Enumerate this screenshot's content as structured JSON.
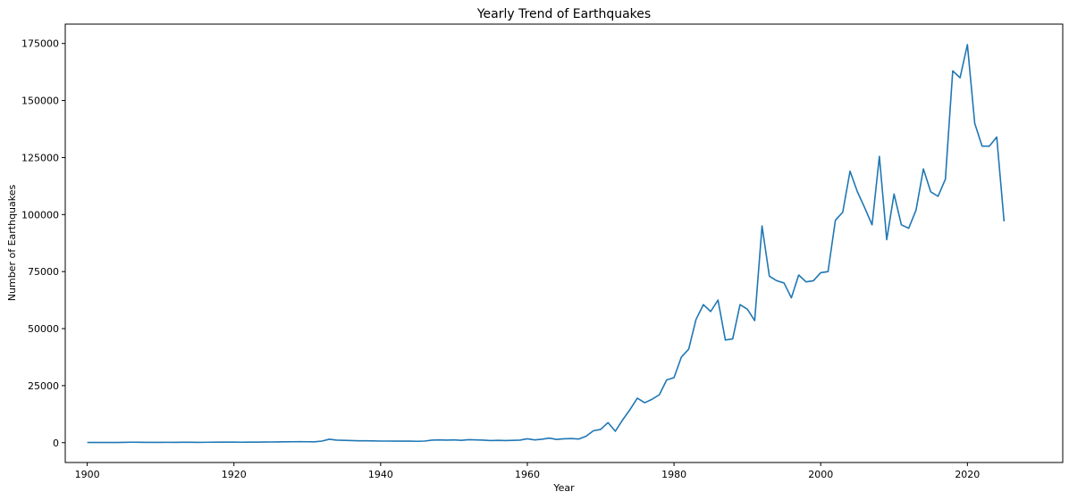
{
  "chart_data": {
    "type": "line",
    "title": "Yearly Trend of Earthquakes",
    "xlabel": "Year",
    "ylabel": "Number of Earthquakes",
    "xlim": [
      1897,
      2033
    ],
    "ylim": [
      -8700,
      183500
    ],
    "x_ticks": [
      1900,
      1920,
      1940,
      1960,
      1980,
      2000,
      2020
    ],
    "y_ticks": [
      0,
      25000,
      50000,
      75000,
      100000,
      125000,
      150000,
      175000
    ],
    "grid": false,
    "line_color": "#1f77b4",
    "series": [
      {
        "x": [
          1900,
          1901,
          1902,
          1903,
          1904,
          1905,
          1906,
          1907,
          1908,
          1909,
          1910,
          1911,
          1912,
          1913,
          1914,
          1915,
          1916,
          1917,
          1918,
          1919,
          1920,
          1921,
          1922,
          1923,
          1924,
          1925,
          1926,
          1927,
          1928,
          1929,
          1930,
          1931,
          1932,
          1933,
          1934,
          1935,
          1936,
          1937,
          1938,
          1939,
          1940,
          1941,
          1942,
          1943,
          1944,
          1945,
          1946,
          1947,
          1948,
          1949,
          1950,
          1951,
          1952,
          1953,
          1954,
          1955,
          1956,
          1957,
          1958,
          1959,
          1960,
          1961,
          1962,
          1963,
          1964,
          1965,
          1966,
          1967,
          1968,
          1969,
          1970,
          1971,
          1972,
          1973,
          1974,
          1975,
          1976,
          1977,
          1978,
          1979,
          1980,
          1981,
          1982,
          1983,
          1984,
          1985,
          1986,
          1987,
          1988,
          1989,
          1990,
          1991,
          1992,
          1993,
          1994,
          1995,
          1996,
          1997,
          1998,
          1999,
          2000,
          2001,
          2002,
          2003,
          2004,
          2005,
          2006,
          2007,
          2008,
          2009,
          2010,
          2011,
          2012,
          2013,
          2014,
          2015,
          2016,
          2017,
          2018,
          2019,
          2020,
          2021,
          2022,
          2023,
          2024,
          2025
        ],
        "values": [
          100,
          80,
          80,
          90,
          100,
          150,
          200,
          180,
          150,
          130,
          150,
          160,
          140,
          170,
          180,
          150,
          160,
          200,
          250,
          230,
          220,
          210,
          230,
          250,
          270,
          300,
          340,
          380,
          400,
          420,
          400,
          380,
          700,
          1500,
          1100,
          1000,
          900,
          800,
          800,
          750,
          700,
          700,
          650,
          700,
          650,
          600,
          700,
          1100,
          1200,
          1100,
          1200,
          1000,
          1300,
          1200,
          1100,
          900,
          1000,
          900,
          1000,
          1100,
          1700,
          1200,
          1500,
          2000,
          1400,
          1700,
          1800,
          1600,
          2800,
          5200,
          5800,
          8800,
          5000,
          10000,
          14500,
          19500,
          17500,
          19000,
          21000,
          27500,
          28500,
          37500,
          41000,
          54000,
          60500,
          57500,
          62500,
          45000,
          45500,
          60500,
          58500,
          53500,
          95000,
          73000,
          71000,
          70000,
          63500,
          73500,
          70500,
          71000,
          74500,
          75000,
          97500,
          101000,
          119000,
          110000,
          103000,
          95500,
          125500,
          89000,
          109000,
          95500,
          94000,
          102000,
          120000,
          110000,
          108000,
          115500,
          163000,
          160000,
          174500,
          140000,
          130000,
          130000,
          134000,
          97000
        ]
      }
    ]
  }
}
